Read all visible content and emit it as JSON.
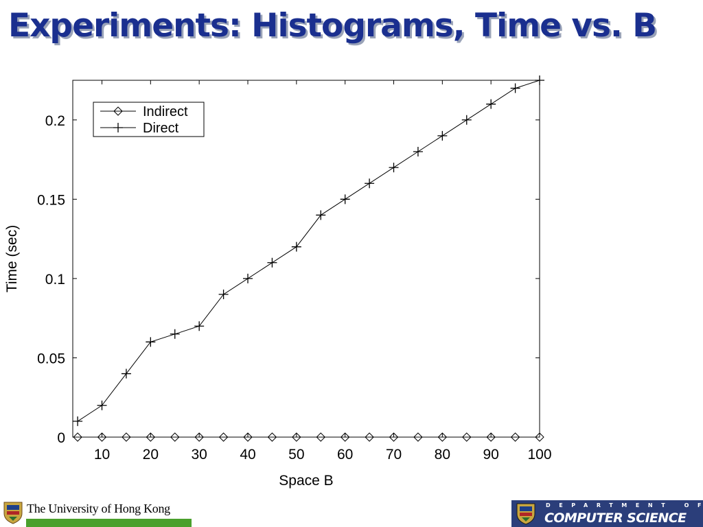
{
  "slide": {
    "title": "Experiments: Histograms, Time vs. B"
  },
  "chart_data": {
    "type": "line",
    "title": "",
    "xlabel": "Space B",
    "ylabel": "Time (sec)",
    "xlim": [
      4,
      100
    ],
    "ylim": [
      0,
      0.225
    ],
    "xticks": [
      10,
      20,
      30,
      40,
      50,
      60,
      70,
      80,
      90,
      100
    ],
    "xtick_labels": [
      "10",
      "20",
      "30",
      "40",
      "50",
      "60",
      "70",
      "80",
      "90",
      "100"
    ],
    "yticks": [
      0,
      0.05,
      0.1,
      0.15,
      0.2
    ],
    "ytick_labels": [
      "0",
      "0.05",
      "0.1",
      "0.15",
      "0.2"
    ],
    "grid": false,
    "legend_position": "top-left",
    "x": [
      5,
      10,
      15,
      20,
      25,
      30,
      35,
      40,
      45,
      50,
      55,
      60,
      65,
      70,
      75,
      80,
      85,
      90,
      95,
      100
    ],
    "series": [
      {
        "name": "Indirect",
        "marker": "diamond",
        "values": [
          0,
          0,
          0,
          0,
          0,
          0,
          0,
          0,
          0,
          0,
          0,
          0,
          0,
          0,
          0,
          0,
          0,
          0,
          0,
          0
        ]
      },
      {
        "name": "Direct",
        "marker": "plus",
        "values": [
          0.01,
          0.02,
          0.04,
          0.06,
          0.065,
          0.07,
          0.09,
          0.1,
          0.11,
          0.12,
          0.14,
          0.15,
          0.16,
          0.17,
          0.18,
          0.19,
          0.2,
          0.21,
          0.22,
          0.225
        ]
      }
    ],
    "colors": {
      "line": "#000000",
      "axes": "#000000",
      "background": "#ffffff"
    }
  },
  "footer": {
    "university": "The University of Hong Kong",
    "department_top": "DEPARTMENT OF",
    "department_name": "COMPUTER SCIENCE",
    "colors": {
      "university_bar": "#4aa02c",
      "department_panel": "#2b3e7a",
      "title": "#1a2f8f"
    }
  }
}
